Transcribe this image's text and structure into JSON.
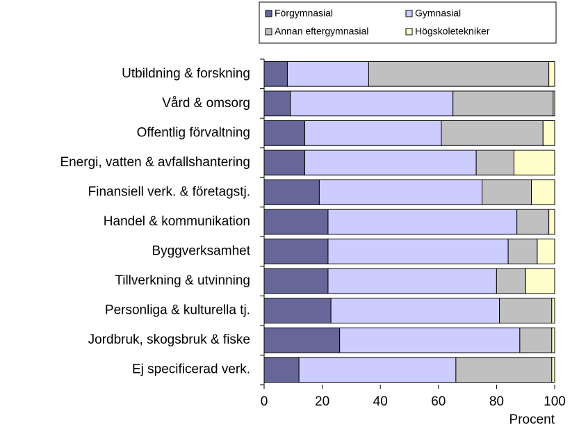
{
  "chart_data": {
    "type": "stacked-bar-horizontal",
    "categories": [
      "Utbildning & forskning",
      "Vård & omsorg",
      "Offentlig förvaltning",
      "Energi, vatten & avfallshantering",
      "Finansiell verk. & företagstj.",
      "Handel & kommunikation",
      "Byggverksamhet",
      "Tillverkning & utvinning",
      "Personliga & kulturella tj.",
      "Jordbruk, skogsbruk & fiske",
      "Ej specificerad verk."
    ],
    "series": [
      {
        "name": "Förgymnasial",
        "color": "#666699",
        "values": [
          8,
          9,
          14,
          14,
          19,
          22,
          22,
          22,
          23,
          26,
          12
        ]
      },
      {
        "name": "Gymnasial",
        "color": "#ccccff",
        "values": [
          28,
          56,
          47,
          59,
          56,
          65,
          62,
          58,
          58,
          62,
          54
        ]
      },
      {
        "name": "Annan eftergymnasial",
        "color": "#c0c0c0",
        "values": [
          62,
          34.5,
          35,
          13,
          17,
          11,
          10,
          10,
          18,
          11,
          33
        ]
      },
      {
        "name": "Högskoletekniker",
        "color": "#ffffcc",
        "values": [
          2,
          0.5,
          4,
          14,
          8,
          2,
          6,
          10,
          1,
          1,
          1
        ]
      }
    ],
    "xlim": [
      0,
      100
    ],
    "xticks": [
      0,
      20,
      40,
      60,
      80,
      100
    ],
    "xlabel": "Procent",
    "legend": "top"
  }
}
